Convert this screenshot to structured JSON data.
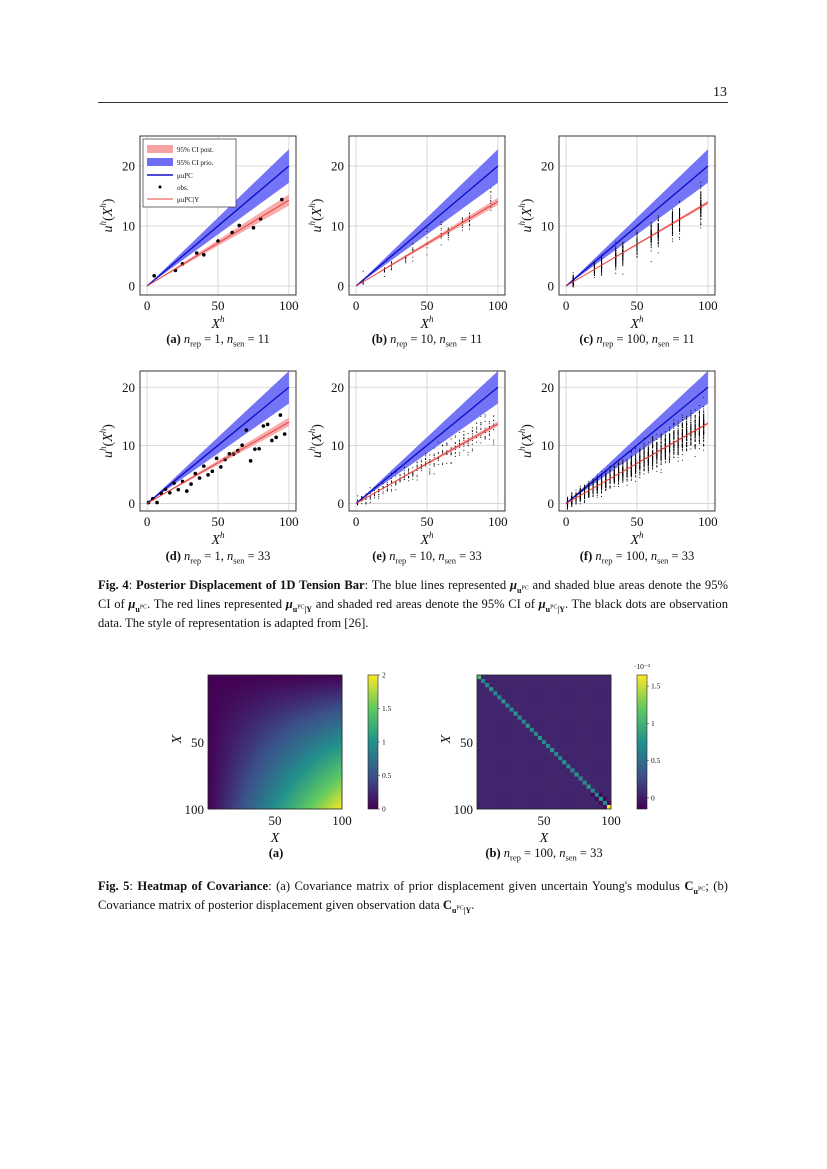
{
  "page_number": "13",
  "math": {
    "mu": "μ",
    "u": "u",
    "pc": "PC",
    "given_y": "|Y",
    "C": "C",
    "n": "n",
    "rep": "rep",
    "sen": "sen",
    "eq": " = "
  },
  "figure4": {
    "subplots": [
      {
        "label": "(a)",
        "n_rep": "1",
        "n_sen": "11"
      },
      {
        "label": "(b)",
        "n_rep": "10",
        "n_sen": "11"
      },
      {
        "label": "(c)",
        "n_rep": "100",
        "n_sen": "11"
      },
      {
        "label": "(d)",
        "n_rep": "1",
        "n_sen": "33"
      },
      {
        "label": "(e)",
        "n_rep": "10",
        "n_sen": "33"
      },
      {
        "label": "(f)",
        "n_rep": "100",
        "n_sen": "33"
      }
    ],
    "caption": {
      "label": "Fig. 4",
      "title": "Posterior Displacement of 1D Tension Bar",
      "t1": "The blue lines represented",
      "t2": "and shaded blue areas denote the 95% CI of",
      "t3": ". The red lines represented",
      "t4": "and shaded red areas denote the 95% CI of",
      "t5": ". The black dots are observation data. The style of representation is adapted from [26]."
    }
  },
  "figure5": {
    "subplots": [
      {
        "label": "(a)"
      },
      {
        "label": "(b)",
        "n_rep": "100",
        "n_sen": "33"
      }
    ],
    "caption": {
      "label": "Fig. 5",
      "title": "Heatmap of Covariance",
      "t1": "(a) Covariance matrix of prior displacement given uncertain Young's modulus",
      "t2": "; (b) Covariance matrix of posterior displacement given observation data",
      "t3": "."
    }
  },
  "colors": {
    "prior": "#3a3af0",
    "prior_band": "#6d6df5",
    "posterior": "#e8413c",
    "posterior_band": "#f7a3a3",
    "obs": "#000000",
    "grid": "#d0d0d0"
  },
  "chart_data": [
    {
      "type": "line",
      "id": "a",
      "xlabel": "X^h",
      "ylabel": "u^h(X^h)",
      "xlim": [
        -5,
        105
      ],
      "ylim": [
        -1.5,
        25
      ],
      "xticks": [
        0,
        50,
        100
      ],
      "yticks": [
        0,
        10,
        20
      ],
      "grid": true,
      "legend": {
        "placement": "top-left",
        "entries": [
          "95% CI post.",
          "95% CI prio.",
          "μuPC",
          "obs.",
          "μuPC|Y"
        ]
      },
      "prior_mean": {
        "x": [
          0,
          100
        ],
        "y": [
          0,
          20
        ]
      },
      "prior_ci": {
        "x": [
          0,
          100
        ],
        "lower": [
          0,
          17.2
        ],
        "upper": [
          0,
          22.8
        ]
      },
      "posterior_mean": {
        "x": [
          0,
          100
        ],
        "y": [
          0,
          14.3
        ]
      },
      "posterior_ci": {
        "x": [
          0,
          100
        ],
        "lower": [
          0,
          13.4
        ],
        "upper": [
          0,
          15.3
        ]
      },
      "n_rep": 1,
      "n_sen": 11,
      "observations": {
        "x": [
          5,
          20,
          25,
          35,
          40,
          50,
          60,
          65,
          75,
          80,
          95
        ],
        "y": [
          1.7,
          2.6,
          3.7,
          5.5,
          5.2,
          7.5,
          8.9,
          10.1,
          9.7,
          11.2,
          14.4
        ]
      }
    },
    {
      "type": "scatter",
      "id": "b",
      "xlabel": "X^h",
      "ylabel": "u^h(X^h)",
      "xlim": [
        -5,
        105
      ],
      "ylim": [
        -1.5,
        25
      ],
      "xticks": [
        0,
        50,
        100
      ],
      "yticks": [
        0,
        10,
        20
      ],
      "grid": true,
      "prior_mean": {
        "x": [
          0,
          100
        ],
        "y": [
          0,
          20
        ]
      },
      "prior_ci": {
        "x": [
          0,
          100
        ],
        "lower": [
          0,
          17.2
        ],
        "upper": [
          0,
          22.8
        ]
      },
      "posterior_mean": {
        "x": [
          0,
          100
        ],
        "y": [
          0,
          14.1
        ]
      },
      "posterior_ci": {
        "x": [
          0,
          100
        ],
        "lower": [
          0,
          13.5
        ],
        "upper": [
          0,
          14.7
        ]
      },
      "n_rep": 10,
      "n_sen": 11,
      "obs_slope": 0.141,
      "obs_noise_rel": 0.07
    },
    {
      "type": "scatter",
      "id": "c",
      "xlabel": "X^h",
      "ylabel": "u^h(X^h)",
      "xlim": [
        -5,
        105
      ],
      "ylim": [
        -1.5,
        25
      ],
      "xticks": [
        0,
        50,
        100
      ],
      "yticks": [
        0,
        10,
        20
      ],
      "grid": true,
      "prior_mean": {
        "x": [
          0,
          100
        ],
        "y": [
          0,
          20
        ]
      },
      "prior_ci": {
        "x": [
          0,
          100
        ],
        "lower": [
          0,
          17.2
        ],
        "upper": [
          0,
          22.8
        ]
      },
      "posterior_mean": {
        "x": [
          0,
          100
        ],
        "y": [
          0,
          13.9
        ]
      },
      "posterior_ci": {
        "x": [
          0,
          100
        ],
        "lower": [
          0,
          13.6
        ],
        "upper": [
          0,
          14.2
        ]
      },
      "n_rep": 100,
      "n_sen": 11,
      "obs_slope": 0.14,
      "obs_noise_rel": 0.08
    },
    {
      "type": "scatter",
      "id": "d",
      "xlabel": "X^h",
      "ylabel": "u^h(X^h)",
      "xlim": [
        -5,
        105
      ],
      "ylim": [
        -1.3,
        22.8
      ],
      "xticks": [
        0,
        50,
        100
      ],
      "yticks": [
        0,
        10,
        20
      ],
      "grid": true,
      "prior_mean": {
        "x": [
          0,
          100
        ],
        "y": [
          0,
          20
        ]
      },
      "prior_ci": {
        "x": [
          0,
          100
        ],
        "lower": [
          0,
          17.2
        ],
        "upper": [
          0,
          22.8
        ]
      },
      "posterior_mean": {
        "x": [
          0,
          100
        ],
        "y": [
          0,
          14
        ]
      },
      "posterior_ci": {
        "x": [
          0,
          100
        ],
        "lower": [
          0,
          13.3
        ],
        "upper": [
          0,
          14.8
        ]
      },
      "n_rep": 1,
      "n_sen": 33,
      "obs_slope": 0.14,
      "obs_noise_rel": 0.1
    },
    {
      "type": "scatter",
      "id": "e",
      "xlabel": "X^h",
      "ylabel": "u^h(X^h)",
      "xlim": [
        -5,
        105
      ],
      "ylim": [
        -1.3,
        22.8
      ],
      "xticks": [
        0,
        50,
        100
      ],
      "yticks": [
        0,
        10,
        20
      ],
      "grid": true,
      "prior_mean": {
        "x": [
          0,
          100
        ],
        "y": [
          0,
          20
        ]
      },
      "prior_ci": {
        "x": [
          0,
          100
        ],
        "lower": [
          0,
          17.2
        ],
        "upper": [
          0,
          22.8
        ]
      },
      "posterior_mean": {
        "x": [
          0,
          100
        ],
        "y": [
          0,
          13.7
        ]
      },
      "posterior_ci": {
        "x": [
          0,
          100
        ],
        "lower": [
          0,
          13.3
        ],
        "upper": [
          0,
          14.1
        ]
      },
      "n_rep": 10,
      "n_sen": 33,
      "obs_slope": 0.137,
      "obs_noise_rel": 0.08
    },
    {
      "type": "scatter",
      "id": "f",
      "xlabel": "X^h",
      "ylabel": "u^h(X^h)",
      "xlim": [
        -5,
        105
      ],
      "ylim": [
        -1.3,
        22.8
      ],
      "xticks": [
        0,
        50,
        100
      ],
      "yticks": [
        0,
        10,
        20
      ],
      "grid": true,
      "prior_mean": {
        "x": [
          0,
          100
        ],
        "y": [
          0,
          20
        ]
      },
      "prior_ci": {
        "x": [
          0,
          100
        ],
        "lower": [
          0,
          17.2
        ],
        "upper": [
          0,
          22.8
        ]
      },
      "posterior_mean": {
        "x": [
          0,
          100
        ],
        "y": [
          0,
          13.8
        ]
      },
      "posterior_ci": {
        "x": [
          0,
          100
        ],
        "lower": [
          0,
          13.6
        ],
        "upper": [
          0,
          14.0
        ]
      },
      "n_rep": 100,
      "n_sen": 33,
      "obs_slope": 0.138,
      "obs_noise_rel": 0.09
    },
    {
      "type": "heatmap",
      "id": "cov-prior",
      "xlabel": "X",
      "ylabel": "X",
      "xticks": [
        50,
        100
      ],
      "yticks": [
        50,
        100
      ],
      "range": [
        0,
        100
      ],
      "model": "2 * x * y / 10000",
      "colorbar": {
        "range": [
          0,
          2
        ],
        "ticks": [
          "0",
          "0.5",
          "1",
          "1.5",
          "2"
        ],
        "exponent": ""
      },
      "colormap": "viridis"
    },
    {
      "type": "heatmap",
      "id": "cov-posterior",
      "xlabel": "X",
      "ylabel": "X",
      "xticks": [
        50,
        100
      ],
      "yticks": [
        50,
        100
      ],
      "range": [
        0,
        100
      ],
      "n_cells": 33,
      "diagonal_value": 0.7,
      "off_diagonal_value": 0.05,
      "first_diagonal_value": 1.1,
      "last_diagonal_value": 1.65,
      "colorbar": {
        "range": [
          -0.15,
          1.65
        ],
        "ticks": [
          "0",
          "0.5",
          "1",
          "1.5"
        ],
        "exponent": "·10⁻²"
      },
      "colormap": "viridis"
    }
  ]
}
